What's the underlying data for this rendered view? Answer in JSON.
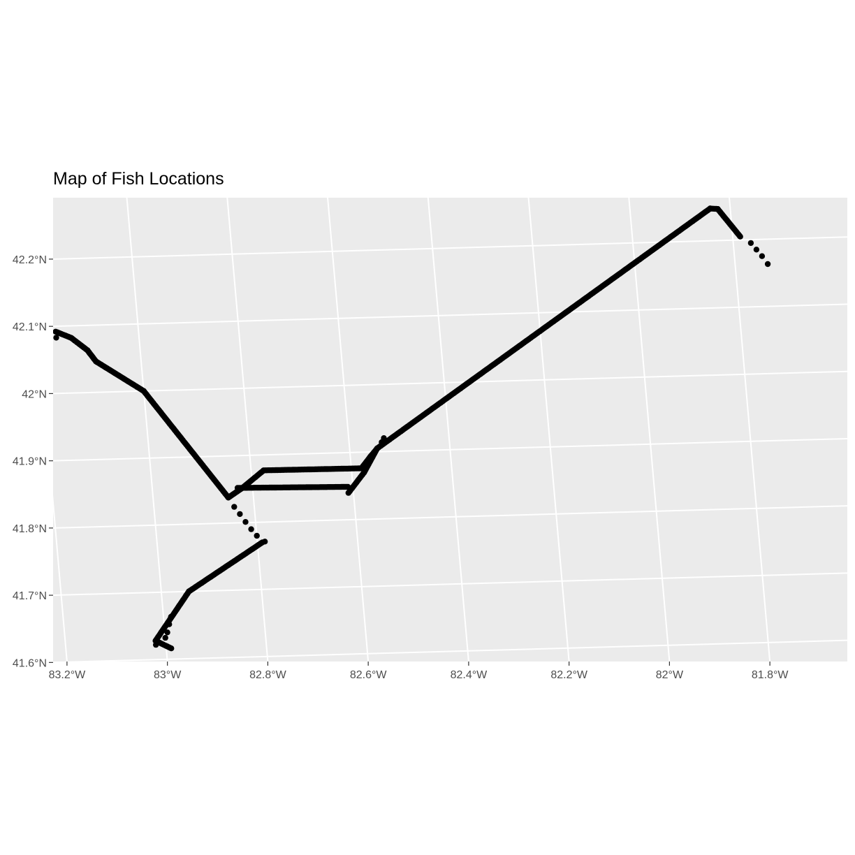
{
  "title": "Map of Fish Locations",
  "colors": {
    "panel_background": "#ebebeb",
    "grid": "#ffffff",
    "points": "#000000",
    "axis_text": "#4d4d4d",
    "ticks": "#333333"
  },
  "chart_data": {
    "type": "scatter",
    "title": "Map of Fish Locations",
    "xlabel": "",
    "ylabel": "",
    "projection": "map graticule (curved lines of longitude/latitude)",
    "grid": true,
    "legend": "none",
    "x_ticks": [
      "83.2°W",
      "83°W",
      "82.8°W",
      "82.6°W",
      "82.4°W",
      "82.2°W",
      "82°W",
      "81.8°W"
    ],
    "y_ticks": [
      "41.6°N",
      "41.7°N",
      "41.8°N",
      "41.9°N",
      "42°N",
      "42.1°N",
      "42.2°N"
    ],
    "x_tick_values": [
      -83.2,
      -83.0,
      -82.8,
      -82.6,
      -82.4,
      -82.2,
      -82.0,
      -81.8
    ],
    "y_tick_values": [
      41.6,
      41.7,
      41.8,
      41.9,
      42.0,
      42.1,
      42.2
    ],
    "xlim": [
      -83.24,
      -81.65
    ],
    "ylim": [
      41.585,
      42.28
    ],
    "track_waypoints": [
      {
        "lon": -83.165,
        "lat": 42.092
      },
      {
        "lon": -83.135,
        "lat": 42.082
      },
      {
        "lon": -83.105,
        "lat": 42.063
      },
      {
        "lon": -83.09,
        "lat": 42.046
      },
      {
        "lon": -83.0,
        "lat": 42.0
      },
      {
        "lon": -82.85,
        "lat": 41.838
      },
      {
        "lon": -82.82,
        "lat": 41.852
      },
      {
        "lon": -82.775,
        "lat": 41.877
      },
      {
        "lon": -82.58,
        "lat": 41.876
      },
      {
        "lon": -82.56,
        "lat": 41.893
      },
      {
        "lon": -82.545,
        "lat": 41.905
      },
      {
        "lon": -81.84,
        "lat": 42.248
      },
      {
        "lon": -81.825,
        "lat": 42.247
      },
      {
        "lon": -81.785,
        "lat": 42.205
      }
    ],
    "side_tracks": [
      [
        {
          "lon": -82.83,
          "lat": 41.852
        },
        {
          "lon": -82.61,
          "lat": 41.849
        }
      ],
      [
        {
          "lon": -82.545,
          "lat": 41.905
        },
        {
          "lon": -82.575,
          "lat": 41.87
        },
        {
          "lon": -82.61,
          "lat": 41.84
        }
      ],
      [
        {
          "lon": -82.79,
          "lat": 41.77
        },
        {
          "lon": -82.945,
          "lat": 41.7
        },
        {
          "lon": -83.02,
          "lat": 41.628
        },
        {
          "lon": -82.99,
          "lat": 41.616
        }
      ]
    ],
    "scattered_points": [
      {
        "lon": -83.165,
        "lat": 42.083
      },
      {
        "lon": -82.84,
        "lat": 41.824
      },
      {
        "lon": -82.83,
        "lat": 41.813
      },
      {
        "lon": -82.82,
        "lat": 41.801
      },
      {
        "lon": -82.81,
        "lat": 41.79
      },
      {
        "lon": -82.8,
        "lat": 41.78
      },
      {
        "lon": -82.785,
        "lat": 41.771
      },
      {
        "lon": -82.53,
        "lat": 41.92
      },
      {
        "lon": -82.535,
        "lat": 41.914
      },
      {
        "lon": -81.765,
        "lat": 42.195
      },
      {
        "lon": -81.755,
        "lat": 42.185
      },
      {
        "lon": -81.745,
        "lat": 42.175
      },
      {
        "lon": -81.735,
        "lat": 42.163
      },
      {
        "lon": -82.985,
        "lat": 41.663
      },
      {
        "lon": -82.99,
        "lat": 41.652
      },
      {
        "lon": -82.995,
        "lat": 41.64
      },
      {
        "lon": -83.0,
        "lat": 41.632
      },
      {
        "lon": -83.02,
        "lat": 41.622
      }
    ]
  }
}
